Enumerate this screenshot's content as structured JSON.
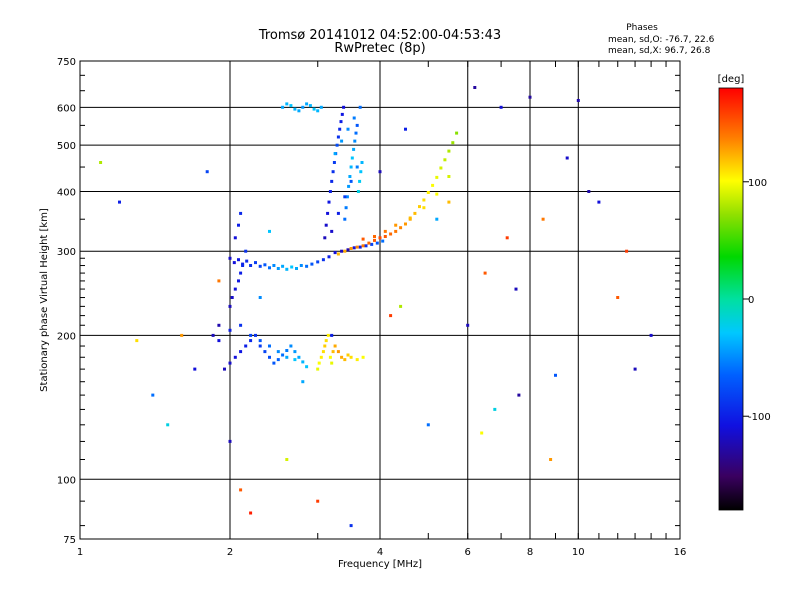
{
  "chart_data": {
    "type": "scatter",
    "title": "Tromsø 20141012 04:52:00-04:53:43",
    "subtitle": "RwPretec (8p)",
    "stats": {
      "heading": "Phases",
      "line1": "mean, sd,O: -76.7, 22.6",
      "line2": "mean, sd,X:  96.7, 26.8"
    },
    "xlabel": "Frequency [MHz]",
    "ylabel": "Stationary phase Virtual Height [km]",
    "x_scale": "log2",
    "y_scale": "log",
    "xlim": [
      1,
      16
    ],
    "ylim": [
      75,
      750
    ],
    "x_ticks": [
      1,
      2,
      4,
      6,
      8,
      10,
      16
    ],
    "y_ticks": [
      75,
      100,
      200,
      300,
      400,
      500,
      600,
      750
    ],
    "grid": true,
    "colorbar": {
      "label": "[deg]",
      "range": [
        -180,
        180
      ],
      "ticks": [
        100,
        0,
        -100
      ]
    },
    "series": [
      {
        "x": [
          2.0,
          2.04,
          2.08,
          2.12,
          2.16,
          2.2,
          2.25,
          2.3,
          2.35,
          2.4,
          2.45,
          2.5,
          2.55,
          2.6,
          2.66,
          2.72,
          2.78,
          2.85,
          2.92,
          3.0,
          3.08,
          3.16,
          3.25,
          3.35,
          3.45,
          3.55,
          3.65,
          3.75,
          3.85,
          3.95,
          4.05
        ],
        "y": [
          290,
          284,
          288,
          282,
          286,
          280,
          284,
          279,
          281,
          277,
          280,
          276,
          279,
          275,
          278,
          276,
          280,
          279,
          282,
          285,
          288,
          292,
          298,
          300,
          302,
          305,
          306,
          308,
          310,
          312,
          315
        ],
        "phase": [
          -115,
          -110,
          -105,
          -100,
          -95,
          -90,
          -85,
          -80,
          -70,
          -60,
          -50,
          -45,
          -40,
          -35,
          -30,
          -40,
          -50,
          -60,
          -70,
          -80,
          -90,
          -100,
          -110,
          -120,
          -125,
          -110,
          -100,
          -90,
          -80,
          -70,
          -60
        ]
      },
      {
        "x": [
          3.3,
          3.4,
          3.5,
          3.6,
          3.7,
          3.8,
          3.9,
          4.0,
          4.1,
          4.2,
          4.3,
          4.4,
          4.5,
          4.6,
          4.7,
          4.8,
          4.9,
          5.0,
          5.1,
          5.2,
          5.3,
          5.4,
          5.5,
          5.6,
          5.7,
          3.7,
          3.9,
          4.1,
          4.3,
          4.6,
          4.9,
          5.2,
          5.5
        ],
        "y": [
          296,
          300,
          304,
          306,
          308,
          312,
          316,
          320,
          322,
          326,
          330,
          336,
          342,
          350,
          360,
          372,
          384,
          398,
          412,
          428,
          448,
          466,
          486,
          506,
          530,
          318,
          322,
          330,
          340,
          352,
          370,
          395,
          430
        ],
        "phase": [
          120,
          125,
          130,
          135,
          140,
          145,
          150,
          155,
          150,
          145,
          140,
          135,
          130,
          125,
          120,
          115,
          110,
          105,
          100,
          95,
          90,
          85,
          80,
          75,
          70,
          150,
          145,
          140,
          130,
          120,
          110,
          100,
          90
        ]
      },
      {
        "x": [
          3.1,
          3.12,
          3.14,
          3.16,
          3.18,
          3.2,
          3.22,
          3.24,
          3.26,
          3.28,
          3.3,
          3.32,
          3.34,
          3.36,
          3.38,
          3.4,
          3.42,
          3.44,
          3.46,
          3.48,
          3.5,
          3.52,
          3.54,
          3.56,
          3.58,
          3.6,
          3.62,
          3.64,
          3.66,
          3.68,
          3.2,
          3.3,
          3.4,
          3.5,
          3.6,
          3.25,
          3.35,
          3.45,
          3.55,
          3.65
        ],
        "y": [
          320,
          340,
          360,
          380,
          400,
          420,
          440,
          460,
          480,
          500,
          520,
          540,
          560,
          580,
          600,
          350,
          370,
          390,
          410,
          430,
          450,
          470,
          490,
          510,
          530,
          550,
          400,
          420,
          440,
          460,
          330,
          360,
          390,
          420,
          450,
          480,
          510,
          540,
          570,
          600
        ],
        "phase": [
          -120,
          -115,
          -110,
          -105,
          -100,
          -95,
          -90,
          -85,
          -80,
          -75,
          -90,
          -95,
          -100,
          -105,
          -110,
          -60,
          -55,
          -50,
          -45,
          -40,
          -35,
          -30,
          -40,
          -50,
          -60,
          -70,
          -20,
          -25,
          -30,
          -35,
          -115,
          -100,
          -85,
          -70,
          -55,
          -40,
          -45,
          -50,
          -55,
          -60
        ]
      },
      {
        "x": [
          1.95,
          2.0,
          2.05,
          2.1,
          2.15,
          2.2,
          2.25,
          2.3,
          2.35,
          2.4,
          2.45,
          2.5,
          2.55,
          2.6,
          2.65,
          2.7,
          2.75,
          2.8,
          2.85,
          1.9,
          2.0,
          2.1,
          2.2,
          2.3,
          2.4,
          2.5,
          2.6,
          2.7,
          1.85,
          1.9
        ],
        "y": [
          170,
          175,
          180,
          185,
          190,
          195,
          200,
          190,
          185,
          180,
          175,
          178,
          182,
          186,
          190,
          185,
          180,
          176,
          172,
          195,
          205,
          210,
          200,
          195,
          190,
          185,
          180,
          178,
          200,
          210
        ],
        "phase": [
          -120,
          -115,
          -110,
          -105,
          -100,
          -95,
          -90,
          -85,
          -80,
          -75,
          -70,
          -65,
          -60,
          -55,
          -50,
          -45,
          -40,
          -35,
          -30,
          -110,
          -100,
          -90,
          -80,
          -70,
          -60,
          -50,
          -40,
          -30,
          -120,
          -125
        ]
      },
      {
        "x": [
          3.0,
          3.02,
          3.05,
          3.08,
          3.1,
          3.12,
          3.15,
          3.18,
          3.2,
          3.22,
          3.25,
          3.3,
          3.35,
          3.4,
          3.45,
          3.5,
          3.6,
          3.7
        ],
        "y": [
          170,
          175,
          180,
          185,
          190,
          195,
          200,
          180,
          175,
          185,
          190,
          185,
          180,
          178,
          182,
          180,
          178,
          180
        ],
        "phase": [
          95,
          100,
          105,
          110,
          115,
          110,
          105,
          100,
          95,
          120,
          125,
          130,
          125,
          120,
          115,
          110,
          105,
          100
        ]
      },
      {
        "x": [
          2.0,
          2.02,
          2.05,
          2.08,
          2.1,
          2.12,
          2.15,
          2.05,
          2.08,
          2.1
        ],
        "y": [
          230,
          240,
          250,
          260,
          270,
          280,
          300,
          320,
          340,
          360
        ],
        "phase": [
          -120,
          -115,
          -110,
          -105,
          -100,
          -95,
          -90,
          -110,
          -100,
          -95
        ]
      },
      {
        "x": [
          2.55,
          2.6,
          2.65,
          2.7,
          2.75,
          2.8,
          2.85,
          2.9,
          2.95,
          3.0,
          3.05
        ],
        "y": [
          600,
          610,
          605,
          595,
          590,
          600,
          610,
          605,
          595,
          590,
          600
        ],
        "phase": [
          -40,
          -35,
          -30,
          -35,
          -40,
          -45,
          -40,
          -35,
          -30,
          -35,
          -40
        ]
      },
      {
        "x": [
          1.1,
          1.2,
          1.3,
          1.4,
          1.5,
          1.6,
          1.7,
          1.8,
          1.9,
          2.0,
          2.1,
          2.2,
          2.3,
          2.4,
          2.6,
          2.8,
          3.0,
          3.2,
          3.5,
          4.2,
          4.5,
          5.0,
          5.5,
          6.0,
          6.2,
          6.5,
          6.8,
          7.0,
          7.2,
          7.5,
          8.0,
          8.5,
          9.0,
          9.5,
          10.0,
          11.0,
          12.0,
          13.0,
          14.0,
          4.0,
          4.4,
          5.2,
          6.4,
          7.6,
          8.8,
          10.5,
          12.5
        ],
        "y": [
          460,
          380,
          195,
          150,
          130,
          200,
          170,
          440,
          260,
          120,
          95,
          85,
          240,
          330,
          110,
          160,
          90,
          200,
          80,
          220,
          540,
          130,
          380,
          210,
          660,
          270,
          140,
          600,
          320,
          250,
          630,
          350,
          165,
          470,
          620,
          380,
          240,
          170,
          200,
          440,
          230,
          350,
          125,
          150,
          110,
          400,
          300
        ],
        "phase": [
          80,
          -100,
          110,
          -60,
          -20,
          130,
          -110,
          -80,
          140,
          -120,
          150,
          170,
          -50,
          -30,
          90,
          -40,
          160,
          -100,
          -90,
          160,
          -100,
          -60,
          120,
          -120,
          -130,
          150,
          -20,
          -110,
          160,
          -120,
          -130,
          140,
          -70,
          -115,
          -125,
          -110,
          150,
          -120,
          -115,
          -120,
          80,
          -40,
          100,
          -130,
          130,
          -125,
          160
        ]
      }
    ]
  }
}
